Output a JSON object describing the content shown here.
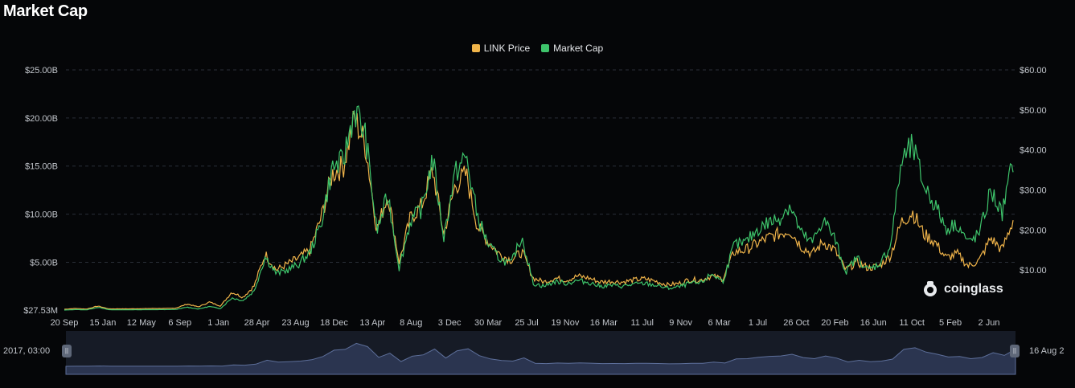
{
  "title": "Market Cap",
  "legend": [
    {
      "label": "LINK Price",
      "color": "#f0b44a"
    },
    {
      "label": "Market Cap",
      "color": "#3ec46b"
    }
  ],
  "watermark": "coinglass",
  "zoom": {
    "left_label": "2017, 03:00",
    "right_label": "16 Aug 2"
  },
  "chart_data": {
    "type": "line",
    "title": "Market Cap",
    "x_tick_labels": [
      "20 Sep",
      "15 Jan",
      "12 May",
      "6 Sep",
      "1 Jan",
      "28 Apr",
      "23 Aug",
      "18 Dec",
      "13 Apr",
      "8 Aug",
      "3 Dec",
      "30 Mar",
      "25 Jul",
      "19 Nov",
      "16 Mar",
      "11 Jul",
      "9 Nov",
      "6 Mar",
      "1 Jul",
      "26 Oct",
      "20 Feb",
      "16 Jun",
      "11 Oct",
      "5 Feb",
      "2 Jun"
    ],
    "y_left": {
      "ticks": [
        27.53,
        5000,
        10000,
        15000,
        20000,
        25000
      ],
      "tick_labels": [
        "$27.53M",
        "$5.00B",
        "$10.00B",
        "$15.00B",
        "$20.00B",
        "$25.00B"
      ],
      "range": [
        27.53,
        25000
      ]
    },
    "y_right": {
      "ticks": [
        10,
        20,
        30,
        40,
        50,
        60
      ],
      "tick_labels": [
        "$10.00",
        "$20.00",
        "$30.00",
        "$40.00",
        "$50.00",
        "$60.00"
      ],
      "range": [
        0,
        60
      ]
    },
    "grid": true,
    "legend_position": "top-center",
    "series": [
      {
        "name": "Market Cap",
        "axis": "left",
        "color": "#3ec46b",
        "values": [
          28,
          80,
          50,
          320,
          65,
          60,
          60,
          70,
          72,
          75,
          90,
          330,
          140,
          400,
          180,
          1300,
          1000,
          2000,
          5600,
          3800,
          4200,
          4800,
          6000,
          9000,
          14800,
          15500,
          21000,
          18000,
          8200,
          12000,
          4400,
          9300,
          10500,
          15800,
          7600,
          14200,
          16000,
          9800,
          6800,
          5400,
          4800,
          7700,
          2800,
          2500,
          3000,
          2800,
          3100,
          2900,
          2500,
          2600,
          2500,
          2700,
          2800,
          2600,
          2300,
          2400,
          2800,
          2800,
          3800,
          3000,
          6800,
          7000,
          8300,
          9100,
          9500,
          11000,
          8000,
          7000,
          9500,
          7500,
          4000,
          5500,
          4200,
          4800,
          6600,
          15500,
          17000,
          13000,
          11000,
          8500,
          9000,
          7000,
          8000,
          12500,
          10000,
          15500
        ]
      },
      {
        "name": "LINK Price",
        "axis": "right",
        "color": "#f0b44a",
        "values": [
          0.2,
          0.4,
          0.25,
          1.0,
          0.3,
          0.3,
          0.3,
          0.35,
          0.4,
          0.4,
          0.5,
          1.5,
          0.8,
          2.0,
          1.0,
          4.5,
          3.2,
          6.0,
          14.0,
          10.0,
          11.5,
          13.0,
          15.0,
          23.0,
          34.0,
          36.0,
          48.0,
          41.0,
          20.0,
          29.0,
          12.0,
          23.0,
          26.0,
          35.0,
          19.0,
          31.0,
          34.0,
          21.0,
          17.0,
          14.0,
          12.5,
          14.5,
          8.0,
          7.0,
          8.0,
          7.5,
          8.5,
          8.0,
          7.0,
          7.2,
          7.0,
          7.5,
          7.8,
          7.2,
          6.3,
          6.6,
          7.6,
          7.5,
          8.5,
          7.8,
          14.5,
          15.0,
          16.5,
          18.0,
          19.0,
          20.0,
          16.0,
          14.0,
          17.0,
          15.0,
          10.0,
          12.0,
          10.5,
          11.0,
          13.5,
          22.0,
          24.5,
          19.0,
          17.0,
          13.0,
          14.0,
          11.0,
          12.5,
          18.0,
          15.0,
          22.5
        ]
      }
    ]
  }
}
